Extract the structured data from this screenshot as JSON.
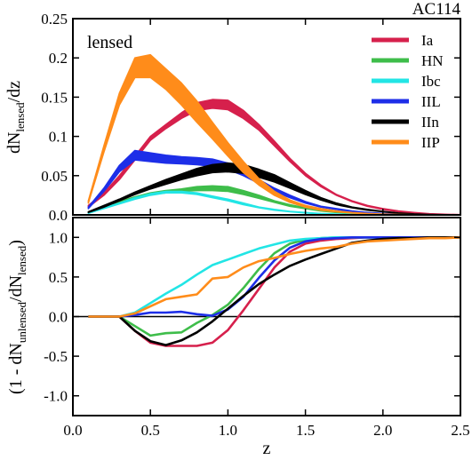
{
  "chart_data": [
    {
      "type": "area",
      "title": "AC114",
      "panel_label": "lensed",
      "ylabel": {
        "main": "dN",
        "sub": "lensed",
        "tail": "/dz"
      },
      "xlim": [
        0.0,
        2.5
      ],
      "ylim": [
        0.0,
        0.25
      ],
      "yticks": [
        "0.0",
        "0.05",
        "0.1",
        "0.15",
        "0.2",
        "0.25"
      ],
      "legend_position": "top-right",
      "series": [
        {
          "name": "Ia",
          "color": "#d6204c",
          "x": [
            0.1,
            0.2,
            0.3,
            0.4,
            0.5,
            0.6,
            0.7,
            0.8,
            0.9,
            1.0,
            1.1,
            1.2,
            1.3,
            1.4,
            1.5,
            1.6,
            1.7,
            1.8,
            1.9,
            2.0,
            2.1,
            2.2,
            2.3,
            2.4,
            2.5
          ],
          "low": [
            0.01,
            0.025,
            0.045,
            0.07,
            0.095,
            0.11,
            0.123,
            0.133,
            0.136,
            0.134,
            0.123,
            0.108,
            0.088,
            0.068,
            0.05,
            0.036,
            0.025,
            0.017,
            0.011,
            0.007,
            0.004,
            0.002,
            0.001,
            0.0005,
            0.0
          ],
          "high": [
            0.012,
            0.028,
            0.05,
            0.075,
            0.1,
            0.115,
            0.13,
            0.143,
            0.147,
            0.146,
            0.133,
            0.115,
            0.094,
            0.072,
            0.053,
            0.038,
            0.026,
            0.018,
            0.012,
            0.008,
            0.005,
            0.003,
            0.0015,
            0.0008,
            0.0003
          ]
        },
        {
          "name": "HN",
          "color": "#3ebd4a",
          "x": [
            0.1,
            0.2,
            0.3,
            0.4,
            0.5,
            0.6,
            0.7,
            0.8,
            0.9,
            1.0,
            1.1,
            1.2,
            1.3,
            1.4,
            1.5,
            1.6,
            1.7,
            1.8,
            1.9,
            2.0,
            2.1,
            2.2,
            2.3,
            2.4,
            2.5
          ],
          "low": [
            0.003,
            0.009,
            0.015,
            0.021,
            0.026,
            0.028,
            0.03,
            0.031,
            0.031,
            0.03,
            0.026,
            0.021,
            0.016,
            0.011,
            0.008,
            0.005,
            0.003,
            0.002,
            0.001,
            0.0006,
            0.0003,
            0.0002,
            0.0001,
            0.0,
            0.0
          ],
          "high": [
            0.004,
            0.01,
            0.017,
            0.023,
            0.028,
            0.031,
            0.033,
            0.036,
            0.037,
            0.036,
            0.031,
            0.025,
            0.018,
            0.013,
            0.009,
            0.006,
            0.004,
            0.0025,
            0.0015,
            0.0008,
            0.0004,
            0.0002,
            0.0001,
            0.0,
            0.0
          ]
        },
        {
          "name": "Ibc",
          "color": "#22e5e5",
          "x": [
            0.1,
            0.2,
            0.3,
            0.4,
            0.5,
            0.6,
            0.7,
            0.8,
            0.9,
            1.0,
            1.1,
            1.2,
            1.3,
            1.4,
            1.5,
            1.6,
            1.7,
            1.8,
            1.9,
            2.0,
            2.1,
            2.2,
            2.3,
            2.4,
            2.5
          ],
          "low": [
            0.002,
            0.008,
            0.014,
            0.02,
            0.025,
            0.028,
            0.028,
            0.026,
            0.022,
            0.018,
            0.013,
            0.009,
            0.006,
            0.004,
            0.0025,
            0.0015,
            0.001,
            0.0005,
            0.0003,
            0.0002,
            0.0001,
            0.0,
            0.0,
            0.0,
            0.0
          ],
          "high": [
            0.003,
            0.009,
            0.015,
            0.022,
            0.027,
            0.03,
            0.03,
            0.028,
            0.024,
            0.02,
            0.015,
            0.01,
            0.007,
            0.0045,
            0.003,
            0.0018,
            0.0011,
            0.0006,
            0.0003,
            0.0002,
            0.0001,
            0.0,
            0.0,
            0.0,
            0.0
          ]
        },
        {
          "name": "IIL",
          "color": "#1d2ee8",
          "x": [
            0.1,
            0.2,
            0.3,
            0.4,
            0.5,
            0.6,
            0.7,
            0.8,
            0.9,
            1.0,
            1.1,
            1.2,
            1.3,
            1.4,
            1.5,
            1.6,
            1.7,
            1.8,
            1.9,
            2.0,
            2.1,
            2.2,
            2.3,
            2.4,
            2.5
          ],
          "low": [
            0.008,
            0.03,
            0.055,
            0.07,
            0.068,
            0.066,
            0.065,
            0.064,
            0.062,
            0.058,
            0.05,
            0.04,
            0.03,
            0.022,
            0.015,
            0.01,
            0.007,
            0.004,
            0.0025,
            0.0015,
            0.0008,
            0.0004,
            0.0002,
            0.0001,
            0.0
          ],
          "high": [
            0.01,
            0.034,
            0.063,
            0.082,
            0.079,
            0.076,
            0.074,
            0.073,
            0.071,
            0.066,
            0.056,
            0.045,
            0.034,
            0.025,
            0.017,
            0.011,
            0.008,
            0.005,
            0.003,
            0.0018,
            0.001,
            0.0005,
            0.0002,
            0.0001,
            0.0
          ]
        },
        {
          "name": "IIn",
          "color": "#000000",
          "x": [
            0.1,
            0.2,
            0.3,
            0.4,
            0.5,
            0.6,
            0.7,
            0.8,
            0.9,
            1.0,
            1.1,
            1.2,
            1.3,
            1.4,
            1.5,
            1.6,
            1.7,
            1.8,
            1.9,
            2.0,
            2.1,
            2.2,
            2.3,
            2.4,
            2.5
          ],
          "low": [
            0.003,
            0.01,
            0.018,
            0.026,
            0.033,
            0.039,
            0.045,
            0.05,
            0.054,
            0.055,
            0.053,
            0.048,
            0.042,
            0.034,
            0.026,
            0.019,
            0.013,
            0.009,
            0.006,
            0.004,
            0.002,
            0.001,
            0.0005,
            0.0002,
            0.0
          ],
          "high": [
            0.004,
            0.012,
            0.02,
            0.029,
            0.037,
            0.045,
            0.052,
            0.059,
            0.064,
            0.066,
            0.064,
            0.058,
            0.051,
            0.041,
            0.031,
            0.022,
            0.015,
            0.01,
            0.007,
            0.0045,
            0.0025,
            0.0012,
            0.0006,
            0.0002,
            0.0
          ]
        },
        {
          "name": "IIP",
          "color": "#ff8c1a",
          "x": [
            0.1,
            0.2,
            0.3,
            0.4,
            0.5,
            0.6,
            0.7,
            0.8,
            0.9,
            1.0,
            1.1,
            1.2,
            1.3,
            1.4,
            1.5,
            1.6,
            1.7,
            1.8,
            1.9,
            2.0,
            2.1,
            2.2,
            2.3,
            2.4,
            2.5
          ],
          "low": [
            0.015,
            0.08,
            0.14,
            0.175,
            0.175,
            0.16,
            0.14,
            0.118,
            0.097,
            0.075,
            0.054,
            0.038,
            0.025,
            0.016,
            0.01,
            0.006,
            0.004,
            0.0025,
            0.0015,
            0.0008,
            0.0004,
            0.0002,
            0.0001,
            0.0,
            0.0
          ],
          "high": [
            0.018,
            0.088,
            0.155,
            0.2,
            0.204,
            0.186,
            0.168,
            0.145,
            0.118,
            0.092,
            0.068,
            0.046,
            0.03,
            0.019,
            0.012,
            0.008,
            0.005,
            0.003,
            0.0018,
            0.001,
            0.0005,
            0.0002,
            0.0001,
            0.0,
            0.0
          ]
        }
      ]
    },
    {
      "type": "line",
      "ylabel": {
        "open": "(1 - dN",
        "sub1": "unlensed",
        "mid": "/dN",
        "sub2": "lensed",
        "close": ")"
      },
      "xlabel": "z",
      "xlim": [
        0.0,
        2.5
      ],
      "ylim": [
        -1.25,
        1.25
      ],
      "xticks": [
        "0.0",
        "0.5",
        "1.0",
        "1.5",
        "2.0",
        "2.5"
      ],
      "yticks": [
        "-1.0",
        "-0.5",
        "0.0",
        "0.5",
        "1.0"
      ],
      "reference_line": 0.0,
      "series": [
        {
          "name": "Ia",
          "color": "#d6204c",
          "x": [
            0.1,
            0.2,
            0.3,
            0.4,
            0.5,
            0.6,
            0.7,
            0.8,
            0.9,
            1.0,
            1.1,
            1.2,
            1.3,
            1.4,
            1.5,
            1.6,
            1.7,
            1.8,
            1.9,
            2.0,
            2.1,
            2.2,
            2.3,
            2.4,
            2.5
          ],
          "y": [
            0.0,
            0.0,
            0.0,
            -0.18,
            -0.33,
            -0.37,
            -0.37,
            -0.37,
            -0.33,
            -0.17,
            0.08,
            0.35,
            0.62,
            0.82,
            0.92,
            0.96,
            0.98,
            0.99,
            1.0,
            1.0,
            1.0,
            1.0,
            1.0,
            1.0,
            1.0
          ]
        },
        {
          "name": "HN",
          "color": "#3ebd4a",
          "x": [
            0.1,
            0.2,
            0.3,
            0.4,
            0.5,
            0.6,
            0.7,
            0.8,
            0.9,
            1.0,
            1.1,
            1.2,
            1.3,
            1.4,
            1.5,
            1.6,
            1.7,
            1.8,
            1.9,
            2.0,
            2.1,
            2.2,
            2.3,
            2.4,
            2.5
          ],
          "y": [
            0.0,
            0.0,
            0.0,
            -0.12,
            -0.24,
            -0.21,
            -0.2,
            -0.08,
            0.02,
            0.15,
            0.36,
            0.6,
            0.8,
            0.92,
            0.97,
            0.99,
            1.0,
            1.0,
            1.0,
            1.0,
            1.0,
            1.0,
            1.0,
            1.0,
            1.0
          ]
        },
        {
          "name": "Ibc",
          "color": "#22e5e5",
          "x": [
            0.1,
            0.2,
            0.3,
            0.4,
            0.5,
            0.6,
            0.7,
            0.8,
            0.9,
            1.0,
            1.1,
            1.2,
            1.3,
            1.4,
            1.5,
            1.6,
            1.7,
            1.8,
            1.9,
            2.0,
            2.1,
            2.2,
            2.3,
            2.4,
            2.5
          ],
          "y": [
            0.0,
            0.0,
            0.0,
            0.05,
            0.17,
            0.29,
            0.4,
            0.53,
            0.65,
            0.72,
            0.79,
            0.86,
            0.91,
            0.96,
            0.98,
            0.99,
            1.0,
            1.0,
            1.0,
            1.0,
            1.0,
            1.0,
            1.0,
            1.0,
            1.0
          ]
        },
        {
          "name": "IIL",
          "color": "#1d2ee8",
          "x": [
            0.1,
            0.2,
            0.3,
            0.4,
            0.5,
            0.6,
            0.7,
            0.8,
            0.9,
            1.0,
            1.1,
            1.2,
            1.3,
            1.4,
            1.5,
            1.6,
            1.7,
            1.8,
            1.9,
            2.0,
            2.1,
            2.2,
            2.3,
            2.4,
            2.5
          ],
          "y": [
            0.0,
            0.0,
            0.0,
            0.02,
            0.05,
            0.05,
            0.06,
            0.03,
            0.01,
            0.09,
            0.25,
            0.49,
            0.71,
            0.87,
            0.95,
            0.98,
            0.99,
            1.0,
            1.0,
            1.0,
            1.0,
            1.0,
            1.0,
            1.0,
            1.0
          ]
        },
        {
          "name": "IIn",
          "color": "#000000",
          "x": [
            0.1,
            0.2,
            0.3,
            0.4,
            0.5,
            0.6,
            0.7,
            0.8,
            0.9,
            1.0,
            1.1,
            1.2,
            1.3,
            1.4,
            1.5,
            1.6,
            1.7,
            1.8,
            1.9,
            2.0,
            2.1,
            2.2,
            2.3,
            2.4,
            2.5
          ],
          "y": [
            0.0,
            0.0,
            0.0,
            -0.18,
            -0.31,
            -0.36,
            -0.3,
            -0.2,
            -0.06,
            0.1,
            0.26,
            0.41,
            0.53,
            0.64,
            0.72,
            0.79,
            0.86,
            0.93,
            0.96,
            0.98,
            0.99,
            0.99,
            1.0,
            1.0,
            1.0
          ]
        },
        {
          "name": "IIP",
          "color": "#ff8c1a",
          "x": [
            0.1,
            0.2,
            0.3,
            0.4,
            0.5,
            0.6,
            0.7,
            0.8,
            0.9,
            1.0,
            1.1,
            1.2,
            1.3,
            1.4,
            1.5,
            1.6,
            1.7,
            1.8,
            1.9,
            2.0,
            2.1,
            2.2,
            2.3,
            2.4,
            2.5
          ],
          "y": [
            0.0,
            0.0,
            0.0,
            0.04,
            0.13,
            0.22,
            0.25,
            0.28,
            0.48,
            0.5,
            0.62,
            0.7,
            0.74,
            0.79,
            0.83,
            0.86,
            0.88,
            0.92,
            0.95,
            0.96,
            0.97,
            0.98,
            0.99,
            0.99,
            1.0
          ]
        }
      ]
    }
  ]
}
